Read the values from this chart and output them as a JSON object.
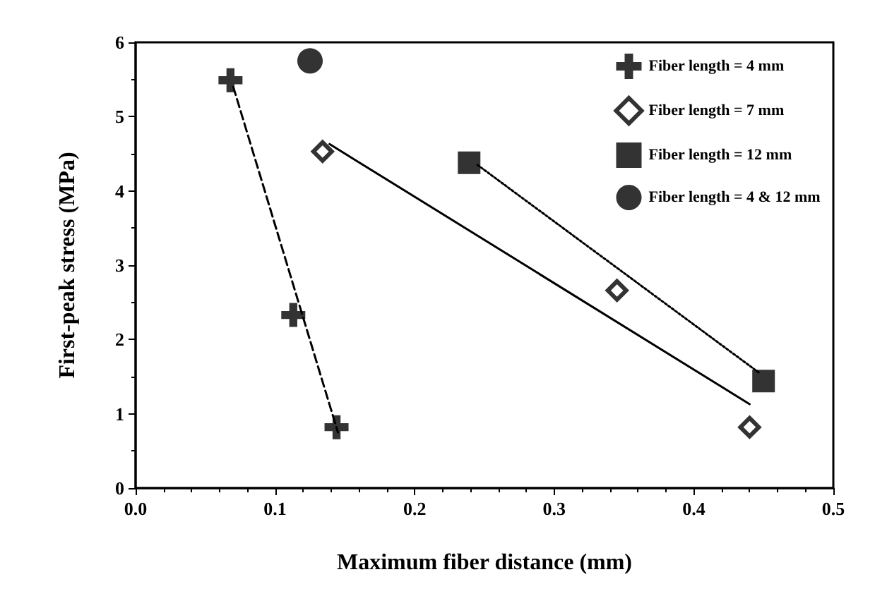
{
  "chart_data": {
    "type": "scatter",
    "xlabel": "Maximum fiber distance (mm)",
    "ylabel": "First-peak stress (MPa)",
    "xlim": [
      0,
      0.5
    ],
    "xticks": [
      {
        "value": 0,
        "label": "0.0"
      },
      0.1,
      0.2,
      0.3,
      0.4,
      0.5
    ],
    "ylim": [
      0,
      6
    ],
    "yticks": [
      0,
      1,
      2,
      3,
      4,
      5,
      6
    ],
    "grid": false,
    "legend": "top right",
    "series": [
      {
        "name": "Fiber length = 4 mm",
        "color": "#000000",
        "marker": "cross",
        "x": [
          0.068,
          0.113,
          0.144
        ],
        "values": [
          5.49,
          2.33,
          0.82
        ]
      },
      {
        "name": "Fiber length = 7 mm",
        "color": "#000000",
        "marker": "diamond",
        "x": [
          0.134,
          0.345,
          0.44
        ],
        "values": [
          4.53,
          2.66,
          0.82
        ]
      },
      {
        "name": "Fiber length = 12 mm",
        "color": "#000000",
        "marker": "square",
        "x": [
          0.239,
          0.45
        ],
        "values": [
          4.38,
          1.44
        ]
      },
      {
        "name": "Fiber length = 4 & 12 mm",
        "color": "#000000",
        "marker": "circle",
        "x": [
          0.125
        ],
        "values": [
          5.75
        ]
      },
      {
        "type": "line",
        "color": "#000000",
        "marker": "none",
        "line_style": "dashed",
        "x": [
          0.07,
          0.145
        ],
        "values": [
          5.4,
          0.75
        ]
      },
      {
        "type": "line",
        "color": "#000000",
        "marker": "none",
        "line_style": "solid",
        "x": [
          0.139,
          0.44
        ],
        "values": [
          4.63,
          1.13
        ]
      },
      {
        "type": "line",
        "color": "#000000",
        "marker": "none",
        "line_style": "dotted",
        "x": [
          0.245,
          0.447
        ],
        "values": [
          4.35,
          1.55
        ]
      }
    ]
  }
}
